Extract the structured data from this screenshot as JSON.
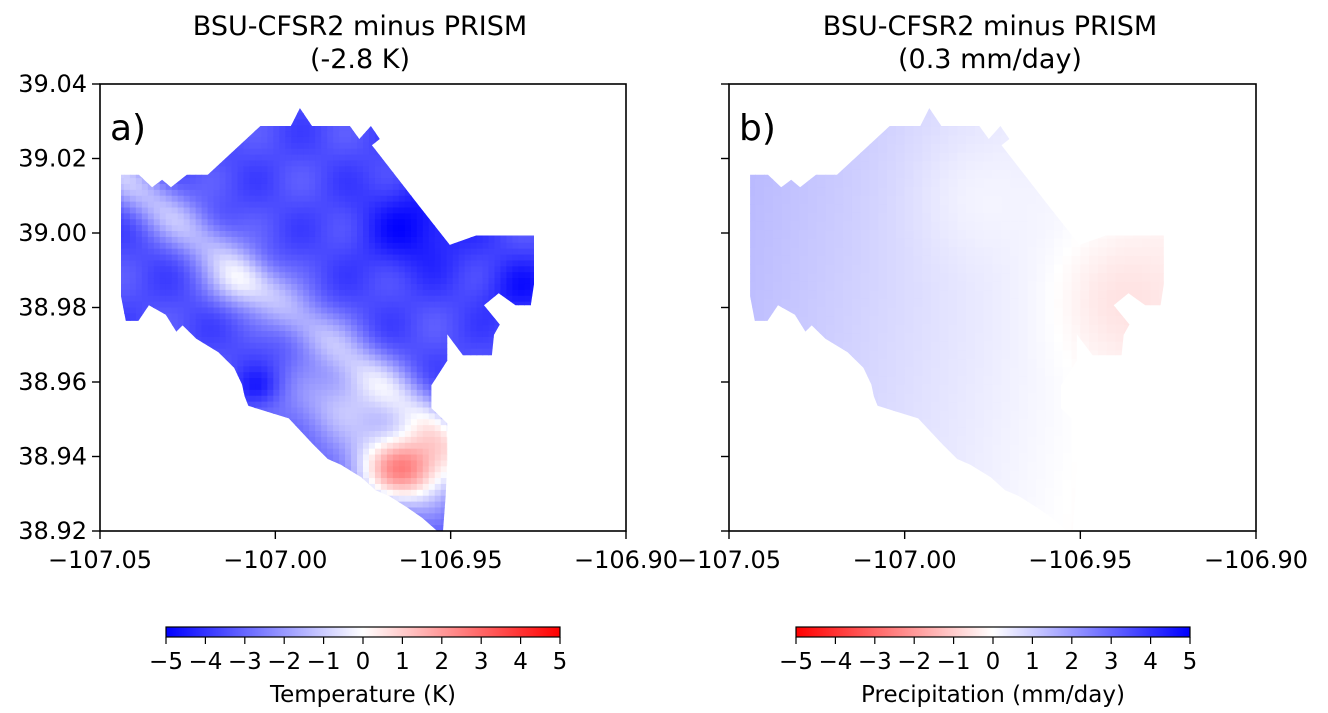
{
  "chart_data": [
    {
      "type": "heatmap",
      "panel_label": "a)",
      "title": "BSU-CFSR2 minus PRISM",
      "subtitle": "(-2.8 K)",
      "xlim": [
        -107.05,
        -106.9
      ],
      "ylim": [
        38.92,
        39.04
      ],
      "x_ticks": [
        "−107.05",
        "−107.00",
        "−106.95",
        "−106.90"
      ],
      "y_ticks": [
        "38.92",
        "38.94",
        "38.96",
        "38.98",
        "39.00",
        "39.02",
        "39.04"
      ],
      "colorbar": {
        "label": "Temperature (K)",
        "range": [
          -5,
          5
        ],
        "ticks": [
          "−5",
          "−4",
          "−3",
          "−2",
          "−1",
          "0",
          "1",
          "2",
          "3",
          "4",
          "5"
        ],
        "colormap": "bwr",
        "low_color": "#0000ff",
        "mid_color": "#ffffff",
        "high_color": "#ff0000"
      },
      "domain_mean": -2.8
    },
    {
      "type": "heatmap",
      "panel_label": "b)",
      "title": "BSU-CFSR2 minus PRISM",
      "subtitle": "(0.3 mm/day)",
      "xlim": [
        -107.05,
        -106.9
      ],
      "ylim": [
        38.92,
        39.04
      ],
      "x_ticks": [
        "−107.05",
        "−107.00",
        "−106.95",
        "−106.90"
      ],
      "y_ticks": [
        "38.92",
        "38.94",
        "38.96",
        "38.98",
        "39.00",
        "39.02",
        "39.04"
      ],
      "colorbar": {
        "label": "Precipitation (mm/day)",
        "range": [
          -5,
          5
        ],
        "ticks": [
          "−5",
          "−4",
          "−3",
          "−2",
          "−1",
          "0",
          "1",
          "2",
          "3",
          "4",
          "5"
        ],
        "colormap": "bwr_r",
        "low_color": "#ff0000",
        "mid_color": "#ffffff",
        "high_color": "#0000ff"
      },
      "domain_mean": 0.3
    }
  ]
}
